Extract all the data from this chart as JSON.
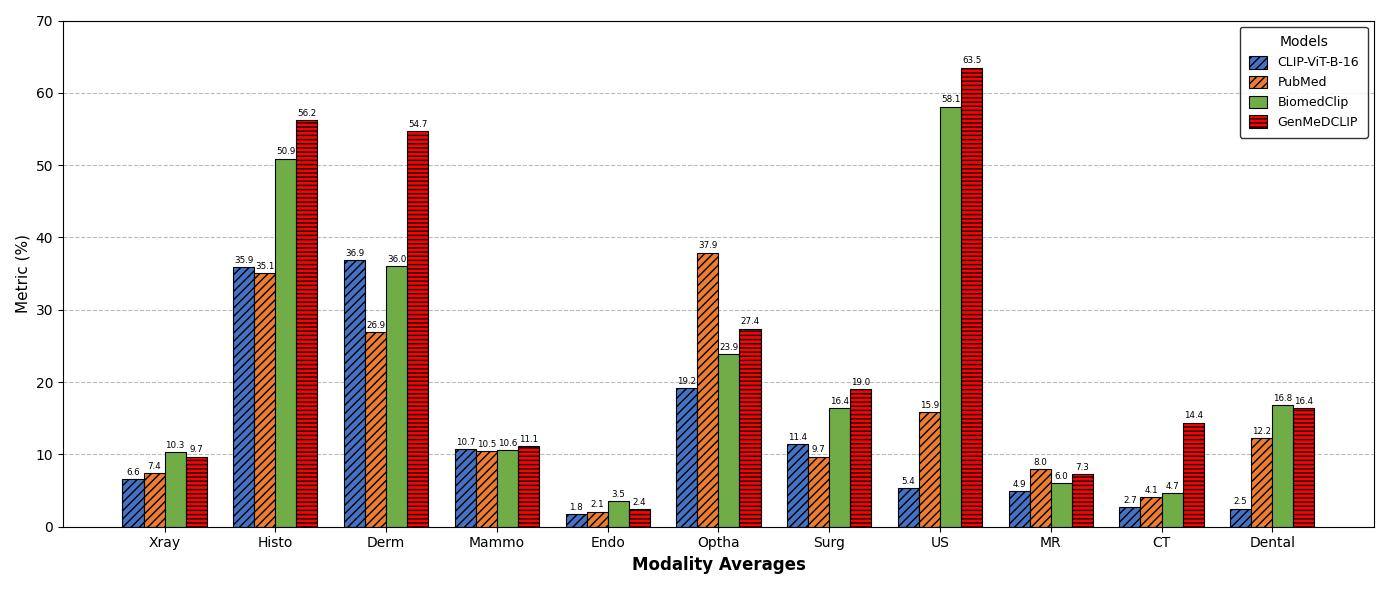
{
  "categories": [
    "Xray",
    "Histo",
    "Derm",
    "Mammo",
    "Endo",
    "Optha",
    "Surg",
    "US",
    "MR",
    "CT",
    "Dental"
  ],
  "models": [
    "CLIP-ViT-B-16",
    "PubMed",
    "BiomedClip",
    "GenMeDCLIP"
  ],
  "values": {
    "CLIP-ViT-B-16": [
      6.6,
      35.9,
      36.9,
      10.7,
      1.8,
      19.2,
      11.4,
      5.4,
      4.9,
      2.7,
      2.5
    ],
    "PubMed": [
      7.4,
      35.1,
      26.9,
      10.5,
      2.1,
      37.9,
      9.7,
      15.9,
      8.0,
      4.1,
      12.2
    ],
    "BiomedClip": [
      10.3,
      50.9,
      36.0,
      10.6,
      3.5,
      23.9,
      16.4,
      58.1,
      6.0,
      4.7,
      16.8
    ],
    "GenMeDCLIP": [
      9.7,
      56.2,
      54.7,
      11.1,
      2.4,
      27.4,
      19.0,
      63.5,
      7.3,
      14.4,
      16.4
    ]
  },
  "colors": {
    "CLIP-ViT-B-16": "#4472C4",
    "PubMed": "#ED7D31",
    "BiomedClip": "#70AD47",
    "GenMeDCLIP": "#FF0000"
  },
  "hatches": {
    "CLIP-ViT-B-16": "////",
    "PubMed": "////",
    "BiomedClip": "",
    "GenMeDCLIP": "----"
  },
  "xlabel": "Modality Averages",
  "ylabel": "Metric (%)",
  "ylim": [
    0,
    70
  ],
  "yticks": [
    0,
    10,
    20,
    30,
    40,
    50,
    60,
    70
  ],
  "bar_width": 0.19,
  "legend_title": "Models",
  "figsize": [
    13.89,
    5.89
  ],
  "dpi": 100
}
